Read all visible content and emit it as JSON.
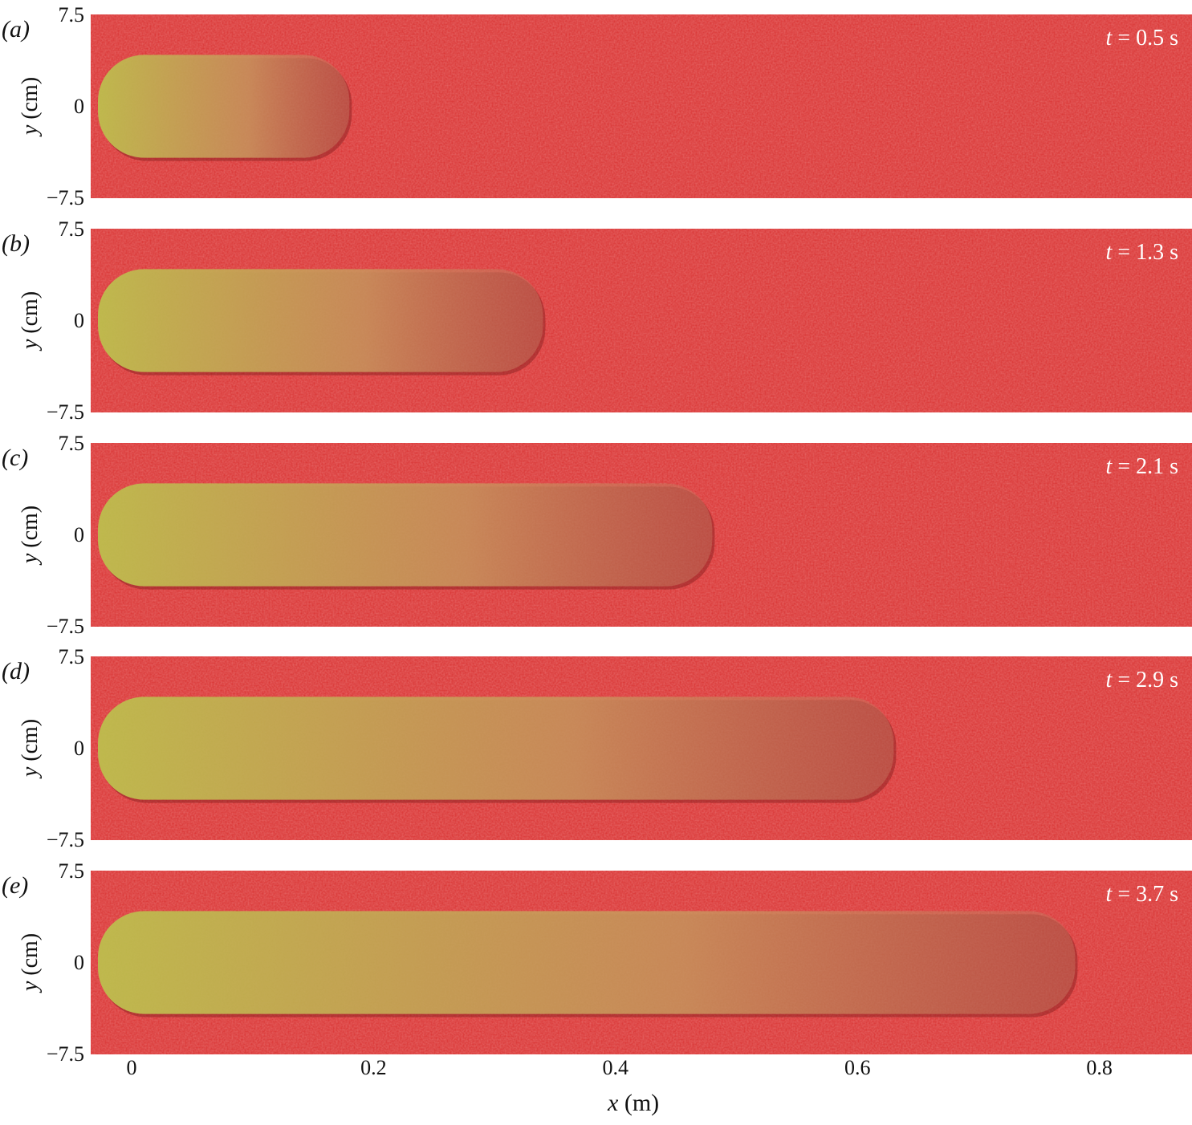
{
  "figure": {
    "colors": {
      "substrate": "#d8302f",
      "deposit": "#b9b548",
      "text_on_photo": "#ffffff"
    },
    "y_axis": {
      "label_var": "y",
      "label_unit": "(cm)",
      "ticks": [
        "7.5",
        "0",
        "−7.5"
      ],
      "range_cm": [
        -7.5,
        7.5
      ]
    },
    "x_axis": {
      "label_var": "x",
      "label_unit": "(m)",
      "ticks": [
        "0",
        "0.2",
        "0.4",
        "0.6",
        "0.8"
      ],
      "tick_values_m": [
        0,
        0.2,
        0.4,
        0.6,
        0.8
      ]
    },
    "panels": [
      {
        "label": "(a)",
        "time_var": "t",
        "time_text": "= 0.5 s",
        "front_x_m": 0.18,
        "half_width_cm": 4.2
      },
      {
        "label": "(b)",
        "time_var": "t",
        "time_text": "= 1.3 s",
        "front_x_m": 0.34,
        "half_width_cm": 4.2
      },
      {
        "label": "(c)",
        "time_var": "t",
        "time_text": "= 2.1 s",
        "front_x_m": 0.48,
        "half_width_cm": 4.2
      },
      {
        "label": "(d)",
        "time_var": "t",
        "time_text": "= 2.9 s",
        "front_x_m": 0.63,
        "half_width_cm": 4.2
      },
      {
        "label": "(e)",
        "time_var": "t",
        "time_text": "= 3.7 s",
        "front_x_m": 0.78,
        "half_width_cm": 4.2
      }
    ]
  }
}
